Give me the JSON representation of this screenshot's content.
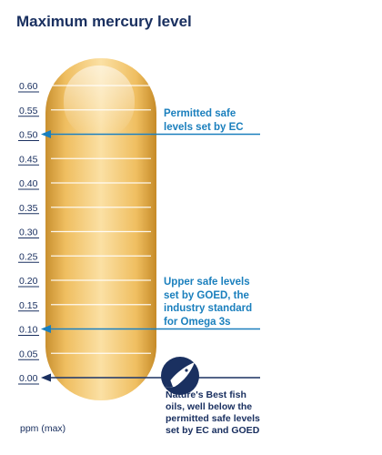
{
  "title": "Maximum mercury level",
  "unit_label": "ppm (max)",
  "colors": {
    "navy": "#1a3060",
    "blue": "#1a7fbd",
    "capsule_light": "#f8dc9c",
    "capsule_mid": "#f0bd5e",
    "capsule_dark": "#c88f2c"
  },
  "icon": "fish-in-circle-icon",
  "chart_data": {
    "type": "bar",
    "title": "Maximum mercury level",
    "ylabel": "ppm (max)",
    "ylim": [
      0,
      0.6
    ],
    "ticks": [
      "0.60",
      "0.55",
      "0.50",
      "0.45",
      "0.40",
      "0.35",
      "0.30",
      "0.25",
      "0.20",
      "0.15",
      "0.10",
      "0.05",
      "0.00"
    ],
    "markers": [
      {
        "value": 0.5,
        "label": "Permitted safe levels set by EC",
        "lines": [
          "Permitted safe",
          "levels set by EC"
        ]
      },
      {
        "value": 0.1,
        "label": "Upper safe levels set by GOED, the industry standard for Omega 3s",
        "lines": [
          "Upper safe levels",
          "set by GOED, the",
          "industry standard",
          "for Omega 3s"
        ]
      },
      {
        "value": 0.0,
        "label": "Nature's Best fish oils, well below the permitted safe levels set by EC and GOED",
        "lines": [
          "Nature's Best fish",
          "oils, well below the",
          "permitted safe levels",
          "set by EC and GOED"
        ]
      }
    ]
  }
}
